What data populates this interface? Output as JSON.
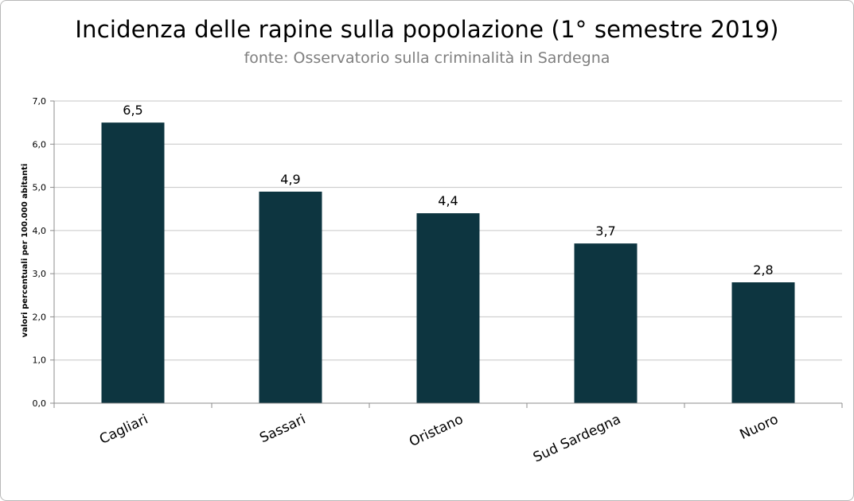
{
  "chart_data": {
    "type": "bar",
    "title": "Incidenza delle rapine sulla popolazione (1° semestre 2019)",
    "subtitle": "fonte: Osservatorio sulla criminalità in Sardegna",
    "ylabel": "valori percentuali per 100.000 abitanti",
    "xlabel": "",
    "categories": [
      "Cagliari",
      "Sassari",
      "Oristano",
      "Sud Sardegna",
      "Nuoro"
    ],
    "values": [
      6.5,
      4.9,
      4.4,
      3.7,
      2.8
    ],
    "value_labels": [
      "6,5",
      "4,9",
      "4,4",
      "3,7",
      "2,8"
    ],
    "ylim": [
      0,
      7
    ],
    "yticks": [
      0,
      1,
      2,
      3,
      4,
      5,
      6,
      7
    ],
    "ytick_labels": [
      "0,0",
      "1,0",
      "2,0",
      "3,0",
      "4,0",
      "5,0",
      "6,0",
      "7,0"
    ],
    "grid": true,
    "legend": "none",
    "colors": {
      "bar": "#0d3540",
      "grid": "#c6c6c6",
      "axis": "#8c8c8c",
      "subtitle": "#7f7f7f"
    }
  }
}
